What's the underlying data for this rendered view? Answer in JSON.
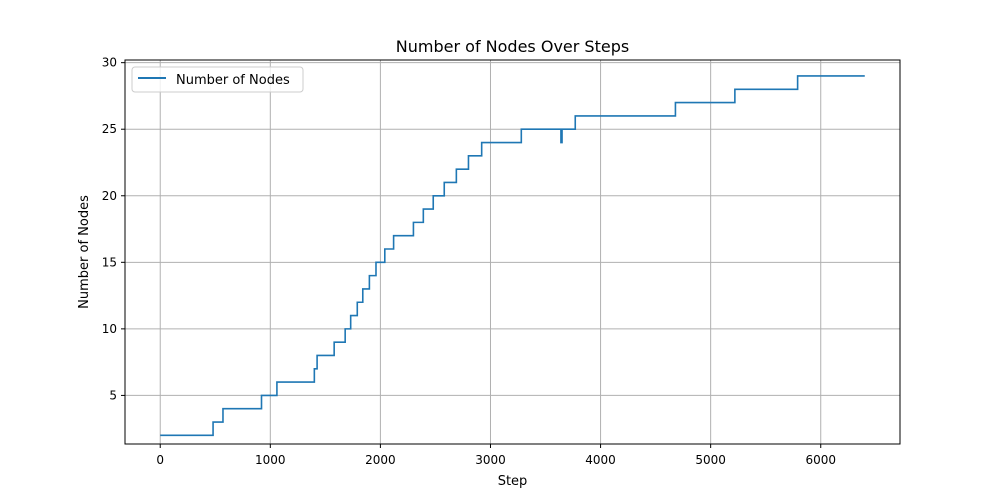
{
  "chart_data": {
    "type": "line",
    "title": "Number of Nodes Over Steps",
    "xlabel": "Step",
    "ylabel": "Number of Nodes",
    "xlim": [
      -320,
      6720
    ],
    "ylim": [
      1.35,
      30.2
    ],
    "grid": true,
    "legend": {
      "position": "top-left",
      "entries": [
        "Number of Nodes"
      ]
    },
    "colors": {
      "series": "#1f77b4",
      "grid": "#b0b0b0",
      "axis": "#000000"
    },
    "x_ticks": [
      {
        "value": 0,
        "label": "0"
      },
      {
        "value": 1000,
        "label": "1000"
      },
      {
        "value": 2000,
        "label": "2000"
      },
      {
        "value": 3000,
        "label": "3000"
      },
      {
        "value": 4000,
        "label": "4000"
      },
      {
        "value": 5000,
        "label": "5000"
      },
      {
        "value": 6000,
        "label": "6000"
      }
    ],
    "y_ticks": [
      {
        "value": 5,
        "label": "5"
      },
      {
        "value": 10,
        "label": "10"
      },
      {
        "value": 15,
        "label": "15"
      },
      {
        "value": 20,
        "label": "20"
      },
      {
        "value": 25,
        "label": "25"
      },
      {
        "value": 30,
        "label": "30"
      }
    ],
    "series": [
      {
        "name": "Number of Nodes",
        "step": "post",
        "x": [
          0,
          480,
          570,
          920,
          1060,
          1400,
          1425,
          1580,
          1680,
          1730,
          1790,
          1840,
          1900,
          1960,
          2040,
          2120,
          2300,
          2390,
          2480,
          2580,
          2690,
          2800,
          2920,
          3280,
          3640,
          3650,
          3770,
          4680,
          5220,
          5790,
          6400
        ],
        "y": [
          2,
          3,
          4,
          5,
          6,
          7,
          8,
          9,
          10,
          11,
          12,
          13,
          14,
          15,
          16,
          17,
          18,
          19,
          20,
          21,
          22,
          23,
          24,
          25,
          24,
          25,
          26,
          27,
          28,
          29,
          29
        ]
      }
    ]
  }
}
